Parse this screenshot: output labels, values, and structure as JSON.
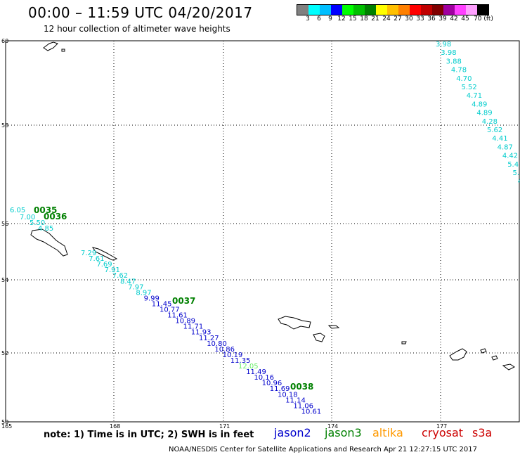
{
  "title": "00:00 – 11:59 UTC 04/20/2017",
  "subtitle": "12 hour collection of altimeter wave heights",
  "colorbar": {
    "colors": [
      "#808080",
      "#00ffff",
      "#00bfff",
      "#0000ff",
      "#00ff00",
      "#00c000",
      "#008000",
      "#ffff00",
      "#ffc000",
      "#ff8000",
      "#ff0000",
      "#c00000",
      "#800000",
      "#a000a0",
      "#ff40ff",
      "#ffa0ff",
      "#000000"
    ],
    "labels": [
      "3",
      "6",
      "9",
      "12",
      "15",
      "18",
      "21",
      "24",
      "27",
      "30",
      "33",
      "36",
      "39",
      "42",
      "45",
      "70 (ft)"
    ]
  },
  "axes": {
    "lat_labels": [
      "60",
      "58",
      "56",
      "54",
      "52",
      "50"
    ],
    "lon_labels": [
      "165",
      "168",
      "171",
      "174",
      "177"
    ]
  },
  "satellite_legend": [
    {
      "label": "jason2",
      "color": "#0000cc"
    },
    {
      "label": "jason3",
      "color": "#008000"
    },
    {
      "label": "altika",
      "color": "#ff9900"
    },
    {
      "label": "cryosat",
      "color": "#cc0000"
    },
    {
      "label": "s3a",
      "color": "#cc0000"
    }
  ],
  "note": "note: 1) Time is in UTC; 2) SWH is in feet",
  "footer": "NOAA/NESDIS Center for Satellite Applications and Research   Apr 21 12:27:15 UTC 2017",
  "passes": [
    {
      "label": "0035"
    },
    {
      "label": "0036"
    },
    {
      "label": "0037"
    },
    {
      "label": "0038"
    }
  ],
  "observations": {
    "track_east": {
      "color": "#00cccc",
      "values": [
        "3.98",
        "3.98",
        "3.88",
        "4.78",
        "4.70",
        "5.52",
        "4.71",
        "4.89",
        "4.89",
        "4.28",
        "5.62",
        "4.41",
        "4.87",
        "4.42",
        "5.4",
        "5.",
        "4"
      ]
    },
    "track_west_upper": {
      "values": [
        "6.05",
        "7.00",
        "5.50",
        "4.85"
      ]
    },
    "track_main": {
      "values": [
        "7.29",
        "7.61",
        "7.69",
        "7.91",
        "7.62",
        "8.47",
        "7.97",
        "8.97",
        "9.99",
        "11.45",
        "10.77",
        "11.61",
        "10.89",
        "11.71",
        "11.93",
        "11.27",
        "10.80",
        "10.86",
        "10.19",
        "11.35",
        "12.05",
        "11.49",
        "10.16",
        "10.96",
        "11.69",
        "10.18",
        "11.14",
        "11.06",
        "10.61"
      ],
      "colors": [
        "#00cccc",
        "#00cccc",
        "#00cccc",
        "#00cccc",
        "#00cccc",
        "#00cccc",
        "#00cccc",
        "#00cccc",
        "#0000cc",
        "#0000cc",
        "#0000cc",
        "#0000cc",
        "#0000cc",
        "#0000cc",
        "#0000cc",
        "#0000cc",
        "#0000cc",
        "#0000cc",
        "#0000cc",
        "#0000cc",
        "#66ee66",
        "#0000cc",
        "#0000cc",
        "#0000cc",
        "#0000cc",
        "#0000cc",
        "#0000cc",
        "#0000cc",
        "#0000cc"
      ]
    }
  }
}
